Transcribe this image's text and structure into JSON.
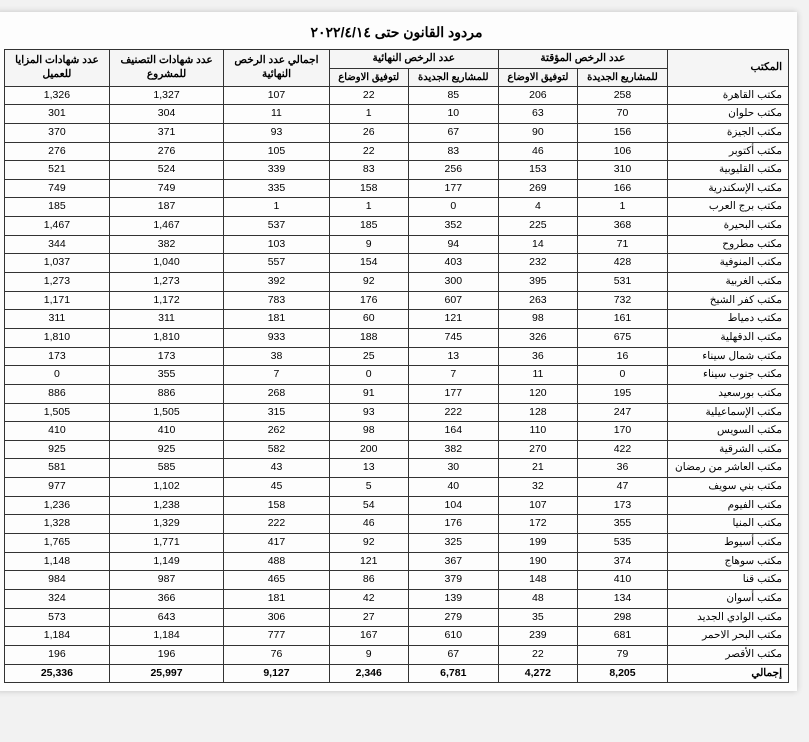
{
  "title": "مردود القانون حتى ٢٠٢٢/٤/١٤",
  "columns": {
    "office": "المكتب",
    "temp_new": "للمشاريع الجديدة",
    "temp_adj": "لتوفيق الاوضاع",
    "final_new": "للمشاريع الجديدة",
    "final_adj": "لتوفيق الاوضاع",
    "final_total": "النهائية",
    "cls_proj": "للمشروع",
    "cls_client": "للعميل",
    "g_temp": "عدد الرخص المؤقتة",
    "g_final": "عدد الرخص النهائية",
    "g_total": "اجمالي عدد الرخص",
    "g_cls": "عدد شهادات التصنيف",
    "g_mz": "عدد شهادات المزايا"
  },
  "rows": [
    {
      "o": "مكتب القاهرة",
      "a": "258",
      "b": "206",
      "c": "85",
      "d": "22",
      "e": "107",
      "f": "1,327",
      "g": "1,326"
    },
    {
      "o": "مكتب حلوان",
      "a": "70",
      "b": "63",
      "c": "10",
      "d": "1",
      "e": "11",
      "f": "304",
      "g": "301"
    },
    {
      "o": "مكتب الجيزة",
      "a": "156",
      "b": "90",
      "c": "67",
      "d": "26",
      "e": "93",
      "f": "371",
      "g": "370"
    },
    {
      "o": "مكتب أكتوبر",
      "a": "106",
      "b": "46",
      "c": "83",
      "d": "22",
      "e": "105",
      "f": "276",
      "g": "276"
    },
    {
      "o": "مكتب القليوبية",
      "a": "310",
      "b": "153",
      "c": "256",
      "d": "83",
      "e": "339",
      "f": "524",
      "g": "521"
    },
    {
      "o": "مكتب الإسكندرية",
      "a": "166",
      "b": "269",
      "c": "177",
      "d": "158",
      "e": "335",
      "f": "749",
      "g": "749"
    },
    {
      "o": "مكتب برج العرب",
      "a": "1",
      "b": "4",
      "c": "0",
      "d": "1",
      "e": "1",
      "f": "187",
      "g": "185"
    },
    {
      "o": "مكتب البحيرة",
      "a": "368",
      "b": "225",
      "c": "352",
      "d": "185",
      "e": "537",
      "f": "1,467",
      "g": "1,467"
    },
    {
      "o": "مكتب مطروح",
      "a": "71",
      "b": "14",
      "c": "94",
      "d": "9",
      "e": "103",
      "f": "382",
      "g": "344"
    },
    {
      "o": "مكتب المنوفية",
      "a": "428",
      "b": "232",
      "c": "403",
      "d": "154",
      "e": "557",
      "f": "1,040",
      "g": "1,037"
    },
    {
      "o": "مكتب الغربية",
      "a": "531",
      "b": "395",
      "c": "300",
      "d": "92",
      "e": "392",
      "f": "1,273",
      "g": "1,273"
    },
    {
      "o": "مكتب كفر الشيخ",
      "a": "732",
      "b": "263",
      "c": "607",
      "d": "176",
      "e": "783",
      "f": "1,172",
      "g": "1,171"
    },
    {
      "o": "مكتب دمياط",
      "a": "161",
      "b": "98",
      "c": "121",
      "d": "60",
      "e": "181",
      "f": "311",
      "g": "311"
    },
    {
      "o": "مكتب الدقهلية",
      "a": "675",
      "b": "326",
      "c": "745",
      "d": "188",
      "e": "933",
      "f": "1,810",
      "g": "1,810"
    },
    {
      "o": "مكتب شمال سيناء",
      "a": "16",
      "b": "36",
      "c": "13",
      "d": "25",
      "e": "38",
      "f": "173",
      "g": "173"
    },
    {
      "o": "مكتب جنوب سيناء",
      "a": "0",
      "b": "11",
      "c": "7",
      "d": "0",
      "e": "7",
      "f": "355",
      "g": "0"
    },
    {
      "o": "مكتب بورسعيد",
      "a": "195",
      "b": "120",
      "c": "177",
      "d": "91",
      "e": "268",
      "f": "886",
      "g": "886"
    },
    {
      "o": "مكتب الإسماعيلية",
      "a": "247",
      "b": "128",
      "c": "222",
      "d": "93",
      "e": "315",
      "f": "1,505",
      "g": "1,505"
    },
    {
      "o": "مكتب السويس",
      "a": "170",
      "b": "110",
      "c": "164",
      "d": "98",
      "e": "262",
      "f": "410",
      "g": "410"
    },
    {
      "o": "مكتب الشرقية",
      "a": "422",
      "b": "270",
      "c": "382",
      "d": "200",
      "e": "582",
      "f": "925",
      "g": "925"
    },
    {
      "o": "مكتب العاشر من رمضان",
      "a": "36",
      "b": "21",
      "c": "30",
      "d": "13",
      "e": "43",
      "f": "585",
      "g": "581"
    },
    {
      "o": "مكتب بني سويف",
      "a": "47",
      "b": "32",
      "c": "40",
      "d": "5",
      "e": "45",
      "f": "1,102",
      "g": "977"
    },
    {
      "o": "مكتب الفيوم",
      "a": "173",
      "b": "107",
      "c": "104",
      "d": "54",
      "e": "158",
      "f": "1,238",
      "g": "1,236"
    },
    {
      "o": "مكتب المنيا",
      "a": "355",
      "b": "172",
      "c": "176",
      "d": "46",
      "e": "222",
      "f": "1,329",
      "g": "1,328"
    },
    {
      "o": "مكتب أسيوط",
      "a": "535",
      "b": "199",
      "c": "325",
      "d": "92",
      "e": "417",
      "f": "1,771",
      "g": "1,765"
    },
    {
      "o": "مكتب سوهاج",
      "a": "374",
      "b": "190",
      "c": "367",
      "d": "121",
      "e": "488",
      "f": "1,149",
      "g": "1,148"
    },
    {
      "o": "مكتب قنا",
      "a": "410",
      "b": "148",
      "c": "379",
      "d": "86",
      "e": "465",
      "f": "987",
      "g": "984"
    },
    {
      "o": "مكتب أسوان",
      "a": "134",
      "b": "48",
      "c": "139",
      "d": "42",
      "e": "181",
      "f": "366",
      "g": "324"
    },
    {
      "o": "مكتب الوادي الجديد",
      "a": "298",
      "b": "35",
      "c": "279",
      "d": "27",
      "e": "306",
      "f": "643",
      "g": "573"
    },
    {
      "o": "مكتب البحر الاحمر",
      "a": "681",
      "b": "239",
      "c": "610",
      "d": "167",
      "e": "777",
      "f": "1,184",
      "g": "1,184"
    },
    {
      "o": "مكتب الأقصر",
      "a": "79",
      "b": "22",
      "c": "67",
      "d": "9",
      "e": "76",
      "f": "196",
      "g": "196"
    },
    {
      "o": "إجمالي",
      "a": "8,205",
      "b": "4,272",
      "c": "6,781",
      "d": "2,346",
      "e": "9,127",
      "f": "25,997",
      "g": "25,336"
    }
  ]
}
